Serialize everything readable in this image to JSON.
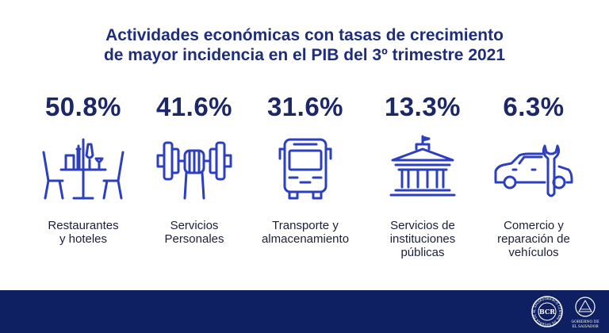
{
  "title": {
    "line1": "Actividades económicas con tasas de crecimiento",
    "line2": "de mayor incidencia en el PIB del 3º trimestre 2021"
  },
  "items": [
    {
      "percent": "50.8%",
      "label": [
        "Restaurantes",
        "y hoteles"
      ],
      "icon": "restaurant-table-icon"
    },
    {
      "percent": "41.6%",
      "label": [
        "Servicios",
        "Personales"
      ],
      "icon": "dumbbell-icon"
    },
    {
      "percent": "31.6%",
      "label": [
        "Transporte y",
        "almacenamiento"
      ],
      "icon": "bus-icon"
    },
    {
      "percent": "13.3%",
      "label": [
        "Servicios de",
        "instituciones",
        "públicas"
      ],
      "icon": "government-building-icon"
    },
    {
      "percent": "6.3%",
      "label": [
        "Comercio y",
        "reparación de",
        "vehículos"
      ],
      "icon": "car-wrench-icon"
    }
  ],
  "footer": {
    "bcr_seal_text": "BANCO CENTRAL DE RESERVA DE EL SALVADOR",
    "bcr_letters": "BCR",
    "gov_text": [
      "GOBIERNO DE",
      "EL SALVADOR"
    ]
  },
  "colors": {
    "title": "#1e2e7a",
    "icon": "#2b3fbf",
    "footer": "#0f2062"
  }
}
